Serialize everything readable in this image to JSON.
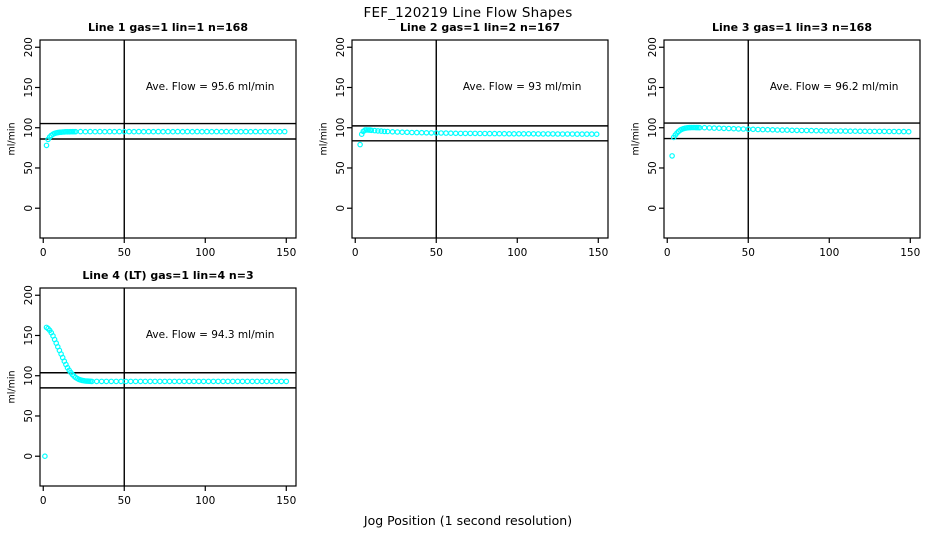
{
  "chart_data": {
    "type": "scatter",
    "title": "FEF_120219  Line Flow Shapes",
    "xlabel": "Jog Position (1 second resolution)",
    "ylabel": "ml/min",
    "x_ticks": [
      0,
      50,
      100,
      150
    ],
    "y_ticks": [
      0,
      50,
      100,
      150,
      200
    ],
    "x_range": [
      -2,
      156
    ],
    "y_range": [
      -37,
      209
    ],
    "grid": false,
    "marker": {
      "shape": "open-circle",
      "color": "#00FFFF",
      "radius": 2.2
    },
    "reference_vline_x": 50,
    "annotation_anchor": {
      "x": 103,
      "y": 147
    },
    "panels": [
      {
        "title": "Line 1 gas=1 lin=1 n=168",
        "ave_flow": 95.6,
        "ave_flow_label": "Ave. Flow = 95.6 ml/min",
        "hline_upper": 105.2,
        "hline_lower": 86.0,
        "points": [
          [
            2,
            78
          ],
          [
            3,
            85.5
          ],
          [
            4,
            88.5
          ],
          [
            5,
            90.5
          ],
          [
            6,
            92
          ],
          [
            7,
            93
          ],
          [
            8,
            93.6
          ],
          [
            9,
            94
          ],
          [
            10,
            94.3
          ],
          [
            11,
            94.5
          ],
          [
            12,
            94.7
          ],
          [
            13,
            94.8
          ],
          [
            14,
            94.9
          ],
          [
            15,
            95
          ],
          [
            16,
            95
          ],
          [
            17,
            95.1
          ],
          [
            18,
            95.1
          ],
          [
            19,
            95.1
          ],
          [
            20,
            95.1
          ],
          [
            23,
            95.2
          ],
          [
            26,
            95.1
          ],
          [
            29,
            95.2
          ],
          [
            32,
            95.1
          ],
          [
            35,
            95.2
          ],
          [
            38,
            95.1
          ],
          [
            41,
            95.2
          ],
          [
            44,
            95.1
          ],
          [
            47,
            95.2
          ],
          [
            50,
            95.1
          ],
          [
            53,
            95.2
          ],
          [
            56,
            95.1
          ],
          [
            59,
            95.2
          ],
          [
            62,
            95.1
          ],
          [
            65,
            95.2
          ],
          [
            68,
            95.1
          ],
          [
            71,
            95.2
          ],
          [
            74,
            95.1
          ],
          [
            77,
            95.2
          ],
          [
            80,
            95.1
          ],
          [
            83,
            95.2
          ],
          [
            86,
            95.1
          ],
          [
            89,
            95.2
          ],
          [
            92,
            95.1
          ],
          [
            95,
            95.2
          ],
          [
            98,
            95.1
          ],
          [
            101,
            95.2
          ],
          [
            104,
            95.1
          ],
          [
            107,
            95.2
          ],
          [
            110,
            95.1
          ],
          [
            113,
            95.2
          ],
          [
            116,
            95.1
          ],
          [
            119,
            95.2
          ],
          [
            122,
            95.1
          ],
          [
            125,
            95.2
          ],
          [
            128,
            95.1
          ],
          [
            131,
            95.2
          ],
          [
            134,
            95.1
          ],
          [
            137,
            95.2
          ],
          [
            140,
            95.1
          ],
          [
            143,
            95.2
          ],
          [
            146,
            95.1
          ],
          [
            149,
            95.2
          ]
        ]
      },
      {
        "title": "Line 2 gas=1 lin=2 n=167",
        "ave_flow": 93,
        "ave_flow_label": "Ave. Flow = 93 ml/min",
        "hline_upper": 102.3,
        "hline_lower": 83.7,
        "points": [
          [
            3,
            79
          ],
          [
            4,
            92
          ],
          [
            5,
            95.5
          ],
          [
            6,
            97
          ],
          [
            7,
            97.3
          ],
          [
            8,
            97.2
          ],
          [
            9,
            97
          ],
          [
            10,
            96.8
          ],
          [
            12,
            96.4
          ],
          [
            14,
            96.1
          ],
          [
            16,
            95.8
          ],
          [
            18,
            95.5
          ],
          [
            20,
            95.3
          ],
          [
            23,
            95
          ],
          [
            26,
            94.7
          ],
          [
            29,
            94.5
          ],
          [
            32,
            94.3
          ],
          [
            35,
            94.1
          ],
          [
            38,
            94
          ],
          [
            41,
            93.8
          ],
          [
            44,
            93.7
          ],
          [
            47,
            93.6
          ],
          [
            50,
            93.5
          ],
          [
            53,
            93.4
          ],
          [
            56,
            93.3
          ],
          [
            59,
            93.2
          ],
          [
            62,
            93.1
          ],
          [
            65,
            93
          ],
          [
            68,
            93
          ],
          [
            71,
            92.9
          ],
          [
            74,
            92.9
          ],
          [
            77,
            92.8
          ],
          [
            80,
            92.8
          ],
          [
            83,
            92.7
          ],
          [
            86,
            92.7
          ],
          [
            89,
            92.6
          ],
          [
            92,
            92.6
          ],
          [
            95,
            92.5
          ],
          [
            98,
            92.5
          ],
          [
            101,
            92.5
          ],
          [
            104,
            92.4
          ],
          [
            107,
            92.4
          ],
          [
            110,
            92.4
          ],
          [
            113,
            92.3
          ],
          [
            116,
            92.3
          ],
          [
            119,
            92.3
          ],
          [
            122,
            92.3
          ],
          [
            125,
            92.2
          ],
          [
            128,
            92.2
          ],
          [
            131,
            92.2
          ],
          [
            134,
            92.2
          ],
          [
            137,
            92.1
          ],
          [
            140,
            92.1
          ],
          [
            143,
            92.1
          ],
          [
            146,
            92.1
          ],
          [
            149,
            92
          ]
        ]
      },
      {
        "title": "Line 3 gas=1 lin=3 n=168",
        "ave_flow": 96.2,
        "ave_flow_label": "Ave. Flow = 96.2 ml/min",
        "hline_upper": 105.8,
        "hline_lower": 86.6,
        "points": [
          [
            3,
            65
          ],
          [
            4,
            88
          ],
          [
            5,
            91
          ],
          [
            6,
            93.5
          ],
          [
            7,
            95.5
          ],
          [
            8,
            97
          ],
          [
            9,
            98
          ],
          [
            10,
            98.8
          ],
          [
            11,
            99.4
          ],
          [
            12,
            99.8
          ],
          [
            13,
            100
          ],
          [
            14,
            100.2
          ],
          [
            15,
            100.3
          ],
          [
            16,
            100.3
          ],
          [
            17,
            100.3
          ],
          [
            18,
            100.2
          ],
          [
            19,
            100.2
          ],
          [
            20,
            100.1
          ],
          [
            23,
            100
          ],
          [
            26,
            99.8
          ],
          [
            29,
            99.6
          ],
          [
            32,
            99.4
          ],
          [
            35,
            99.2
          ],
          [
            38,
            99
          ],
          [
            41,
            98.8
          ],
          [
            44,
            98.6
          ],
          [
            47,
            98.4
          ],
          [
            50,
            98.2
          ],
          [
            53,
            98
          ],
          [
            56,
            97.8
          ],
          [
            59,
            97.7
          ],
          [
            62,
            97.5
          ],
          [
            65,
            97.4
          ],
          [
            68,
            97.2
          ],
          [
            71,
            97.1
          ],
          [
            74,
            97
          ],
          [
            77,
            96.8
          ],
          [
            80,
            96.7
          ],
          [
            83,
            96.6
          ],
          [
            86,
            96.5
          ],
          [
            89,
            96.4
          ],
          [
            92,
            96.3
          ],
          [
            95,
            96.2
          ],
          [
            98,
            96.1
          ],
          [
            101,
            96
          ],
          [
            104,
            95.9
          ],
          [
            107,
            95.9
          ],
          [
            110,
            95.8
          ],
          [
            113,
            95.7
          ],
          [
            116,
            95.7
          ],
          [
            119,
            95.6
          ],
          [
            122,
            95.6
          ],
          [
            125,
            95.5
          ],
          [
            128,
            95.5
          ],
          [
            131,
            95.4
          ],
          [
            134,
            95.4
          ],
          [
            137,
            95.3
          ],
          [
            140,
            95.3
          ],
          [
            143,
            95.2
          ],
          [
            146,
            95.2
          ],
          [
            149,
            95.1
          ]
        ]
      },
      {
        "title": "Line 4 (LT) gas=1 lin=4 n=3",
        "ave_flow": 94.3,
        "ave_flow_label": "Ave. Flow = 94.3 ml/min",
        "hline_upper": 103.7,
        "hline_lower": 84.9,
        "points": [
          [
            1,
            0
          ],
          [
            2,
            160
          ],
          [
            3,
            158.5
          ],
          [
            4,
            156.5
          ],
          [
            5,
            153.5
          ],
          [
            6,
            149.5
          ],
          [
            7,
            145
          ],
          [
            8,
            140.5
          ],
          [
            9,
            136
          ],
          [
            10,
            131.5
          ],
          [
            11,
            127
          ],
          [
            12,
            122.5
          ],
          [
            13,
            118
          ],
          [
            14,
            114
          ],
          [
            15,
            110
          ],
          [
            16,
            106.8
          ],
          [
            17,
            104
          ],
          [
            18,
            101.5
          ],
          [
            19,
            99.5
          ],
          [
            20,
            97.8
          ],
          [
            21,
            96.5
          ],
          [
            22,
            95.5
          ],
          [
            23,
            94.8
          ],
          [
            24,
            94.2
          ],
          [
            25,
            93.8
          ],
          [
            26,
            93.5
          ],
          [
            27,
            93.3
          ],
          [
            28,
            93.2
          ],
          [
            29,
            93.1
          ],
          [
            30,
            93
          ],
          [
            33,
            93
          ],
          [
            36,
            92.9
          ],
          [
            39,
            93
          ],
          [
            42,
            92.9
          ],
          [
            45,
            93
          ],
          [
            48,
            92.9
          ],
          [
            51,
            93
          ],
          [
            54,
            92.9
          ],
          [
            57,
            93
          ],
          [
            60,
            92.9
          ],
          [
            63,
            93
          ],
          [
            66,
            92.9
          ],
          [
            69,
            93
          ],
          [
            72,
            92.9
          ],
          [
            75,
            93
          ],
          [
            78,
            92.9
          ],
          [
            81,
            93
          ],
          [
            84,
            92.9
          ],
          [
            87,
            93
          ],
          [
            90,
            92.9
          ],
          [
            93,
            93
          ],
          [
            96,
            92.9
          ],
          [
            99,
            93
          ],
          [
            102,
            92.9
          ],
          [
            105,
            93
          ],
          [
            108,
            92.9
          ],
          [
            111,
            93
          ],
          [
            114,
            92.9
          ],
          [
            117,
            93
          ],
          [
            120,
            92.9
          ],
          [
            123,
            93
          ],
          [
            126,
            92.9
          ],
          [
            129,
            93
          ],
          [
            132,
            92.9
          ],
          [
            135,
            93
          ],
          [
            138,
            92.9
          ],
          [
            141,
            93
          ],
          [
            144,
            92.9
          ],
          [
            147,
            93
          ],
          [
            150,
            92.9
          ]
        ]
      }
    ]
  }
}
